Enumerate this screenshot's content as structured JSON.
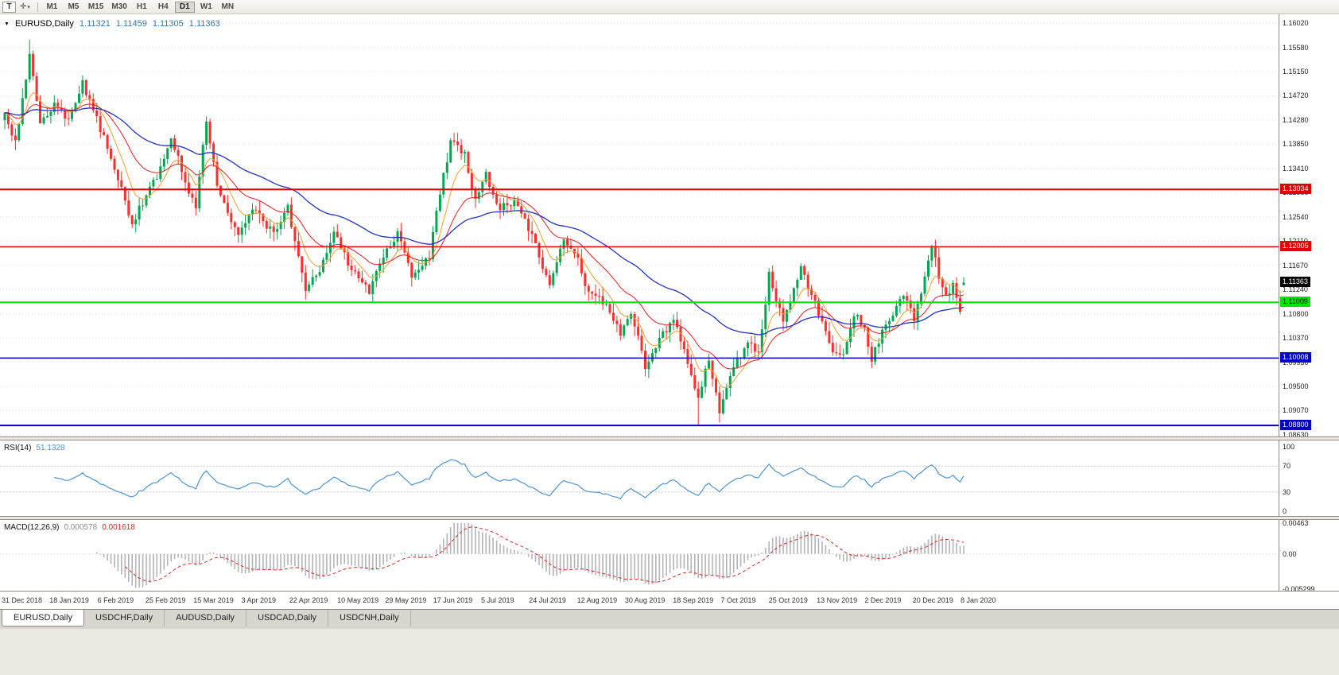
{
  "toolbar": {
    "tool_button": "T",
    "cursor_icon": "✛",
    "dropdown_icon": "▾",
    "timeframes": [
      "M1",
      "M5",
      "M15",
      "M30",
      "H1",
      "H4",
      "D1",
      "W1",
      "MN"
    ],
    "active_timeframe": "D1"
  },
  "chart": {
    "symbol_label": "EURUSD,Daily",
    "dropdown_icon": "▼",
    "ohlc": {
      "open": "1.11321",
      "high": "1.11459",
      "low": "1.11305",
      "close": "1.11363"
    },
    "current_price": "1.11363",
    "axis_top_price": 1.1602,
    "axis_bottom_price": 1.0863,
    "price_axis": [
      "1.16020",
      "1.15580",
      "1.15150",
      "1.14720",
      "1.14280",
      "1.13850",
      "1.13410",
      "1.12980",
      "1.12540",
      "1.12110",
      "1.11670",
      "1.11240",
      "1.10800",
      "1.10370",
      "1.09930",
      "1.09500",
      "1.09070",
      "1.08630"
    ],
    "hlines": [
      {
        "price": 1.13034,
        "label": "1.13034",
        "color": "#dd0000",
        "text": "#ffffff",
        "width": 2
      },
      {
        "price": 1.12005,
        "label": "1.12005",
        "color": "#e80000",
        "text": "#ffffff",
        "width": 1.5
      },
      {
        "price": 1.11009,
        "label": "1.11009",
        "color": "#00e400",
        "text": "#000000",
        "width": 2
      },
      {
        "price": 1.10008,
        "label": "1.10008",
        "color": "#0000c0",
        "text": "#ffffff",
        "width": 1.5
      },
      {
        "price": 1.088,
        "label": "1.08800",
        "color": "#0000c0",
        "text": "#ffffff",
        "width": 2
      }
    ],
    "dates": [
      "31 Dec 2018",
      "18 Jan 2019",
      "6 Feb 2019",
      "25 Feb 2019",
      "15 Mar 2019",
      "3 Apr 2019",
      "22 Apr 2019",
      "10 May 2019",
      "29 May 2019",
      "17 Jun 2019",
      "5 Jul 2019",
      "24 Jul 2019",
      "12 Aug 2019",
      "30 Aug 2019",
      "18 Sep 2019",
      "7 Oct 2019",
      "25 Oct 2019",
      "13 Nov 2019",
      "2 Dec 2019",
      "20 Dec 2019",
      "8 Jan 2020"
    ],
    "candles": 272,
    "price_path": [
      [
        0,
        1.1435
      ],
      [
        3,
        1.1385
      ],
      [
        7,
        1.154
      ],
      [
        10,
        1.1425
      ],
      [
        14,
        1.1455
      ],
      [
        18,
        1.143
      ],
      [
        22,
        1.1495
      ],
      [
        26,
        1.143
      ],
      [
        31,
        1.1345
      ],
      [
        36,
        1.124
      ],
      [
        40,
        1.1295
      ],
      [
        44,
        1.134
      ],
      [
        47,
        1.14
      ],
      [
        51,
        1.1315
      ],
      [
        54,
        1.1275
      ],
      [
        57,
        1.143
      ],
      [
        60,
        1.131
      ],
      [
        66,
        1.122
      ],
      [
        70,
        1.127
      ],
      [
        76,
        1.1225
      ],
      [
        80,
        1.127
      ],
      [
        85,
        1.112
      ],
      [
        89,
        1.116
      ],
      [
        93,
        1.1225
      ],
      [
        98,
        1.116
      ],
      [
        103,
        1.112
      ],
      [
        107,
        1.1185
      ],
      [
        111,
        1.1225
      ],
      [
        115,
        1.115
      ],
      [
        120,
        1.1185
      ],
      [
        123,
        1.1295
      ],
      [
        126,
        1.139
      ],
      [
        130,
        1.1365
      ],
      [
        133,
        1.128
      ],
      [
        136,
        1.133
      ],
      [
        140,
        1.127
      ],
      [
        145,
        1.128
      ],
      [
        150,
        1.1205
      ],
      [
        154,
        1.113
      ],
      [
        158,
        1.1215
      ],
      [
        161,
        1.1195
      ],
      [
        165,
        1.1115
      ],
      [
        170,
        1.11
      ],
      [
        174,
        1.1045
      ],
      [
        177,
        1.1085
      ],
      [
        181,
        1.0985
      ],
      [
        185,
        1.1035
      ],
      [
        189,
        1.107
      ],
      [
        193,
        1.099
      ],
      [
        196,
        1.093
      ],
      [
        199,
        1.1
      ],
      [
        202,
        1.0905
      ],
      [
        206,
        1.0985
      ],
      [
        210,
        1.103
      ],
      [
        213,
        1.1005
      ],
      [
        216,
        1.115
      ],
      [
        220,
        1.107
      ],
      [
        225,
        1.116
      ],
      [
        228,
        1.1115
      ],
      [
        231,
        1.1065
      ],
      [
        234,
        1.101
      ],
      [
        237,
        1.1005
      ],
      [
        240,
        1.108
      ],
      [
        243,
        1.1055
      ],
      [
        245,
        1.1
      ],
      [
        248,
        1.1045
      ],
      [
        251,
        1.108
      ],
      [
        254,
        1.1115
      ],
      [
        257,
        1.107
      ],
      [
        262,
        1.12
      ],
      [
        264,
        1.115
      ],
      [
        266,
        1.111
      ],
      [
        268,
        1.1135
      ],
      [
        270,
        1.1085
      ],
      [
        271,
        1.11363
      ]
    ],
    "spike_high": {
      "index": 7,
      "price": 1.1572
    },
    "spike_low": {
      "index": 196,
      "price": 1.088
    },
    "colors": {
      "up": "#00a651",
      "down": "#ff2e2e",
      "ema_fast": "#f0a030",
      "ema_mid": "#e02020",
      "ema_slow": "#2233bb",
      "grid": "#dcdcdc"
    }
  },
  "rsi": {
    "label": "RSI(14)",
    "value": "51.1328",
    "period": 14,
    "levels": [
      {
        "value": 100,
        "label": "100"
      },
      {
        "value": 70,
        "label": "70"
      },
      {
        "value": 30,
        "label": "30"
      },
      {
        "value": 0,
        "label": "0"
      }
    ],
    "color": "#4f94cd"
  },
  "macd": {
    "label": "MACD(12,26,9)",
    "main_value": "0.000578",
    "signal_value": "0.001618",
    "fast": 12,
    "slow": 26,
    "signal": 9,
    "axis": [
      {
        "value": 0.00463,
        "label": "0.00463"
      },
      {
        "value": 0,
        "label": "0.00"
      },
      {
        "value": -0.005299,
        "label": "-0.005299"
      }
    ],
    "range": [
      -0.005299,
      0.00463
    ],
    "hist_color": "#b4b4b4",
    "signal_color": "#d42a2a"
  },
  "tabs": [
    {
      "label": "EURUSD,Daily",
      "active": true
    },
    {
      "label": "USDCHF,Daily",
      "active": false
    },
    {
      "label": "AUDUSD,Daily",
      "active": false
    },
    {
      "label": "USDCAD,Daily",
      "active": false
    },
    {
      "label": "USDCNH,Daily",
      "active": false
    }
  ]
}
